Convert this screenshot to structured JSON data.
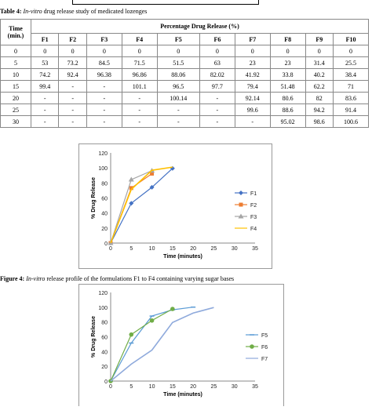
{
  "table": {
    "caption_label": "Table 4:",
    "caption_italic": "In-vitro",
    "caption_rest": " drug release study of medicated lozenges",
    "header_time_line1": "Time",
    "header_time_line2": "(min.)",
    "header_group": "Percentage Drug Release (%)",
    "columns": [
      "F1",
      "F2",
      "F3",
      "F4",
      "F5",
      "F6",
      "F7",
      "F8",
      "F9",
      "F10"
    ],
    "rows": [
      {
        "time": "0",
        "cells": [
          "0",
          "0",
          "0",
          "0",
          "0",
          "0",
          "0",
          "0",
          "0",
          "0"
        ]
      },
      {
        "time": "5",
        "cells": [
          "53",
          "73.2",
          "84.5",
          "71.5",
          "51.5",
          "63",
          "23",
          "23",
          "31.4",
          "25.5"
        ]
      },
      {
        "time": "10",
        "cells": [
          "74.2",
          "92.4",
          "96.38",
          "96.86",
          "88.06",
          "82.02",
          "41.92",
          "33.8",
          "40.2",
          "38.4"
        ]
      },
      {
        "time": "15",
        "cells": [
          "99.4",
          "-",
          "-",
          "101.1",
          "96.5",
          "97.7",
          "79.4",
          "51.48",
          "62.2",
          "71"
        ]
      },
      {
        "time": "20",
        "cells": [
          "-",
          "-",
          "-",
          "-",
          "100.14",
          "-",
          "92.14",
          "80.6",
          "82",
          "83.6"
        ]
      },
      {
        "time": "25",
        "cells": [
          "-",
          "-",
          "-",
          "-",
          "-",
          "-",
          "99.6",
          "88.6",
          "94.2",
          "91.4"
        ]
      },
      {
        "time": "30",
        "cells": [
          "-",
          "-",
          "-",
          "-",
          "-",
          "-",
          "-",
          "95.02",
          "98.6",
          "100.6"
        ]
      }
    ]
  },
  "figure4": {
    "caption_label": "Figure 4:",
    "caption_italic": "In-vitro",
    "caption_rest": " release profile of the formulations F1 to F4 containing varying sugar bases"
  },
  "chart_data": [
    {
      "type": "line",
      "xlabel": "Time (minutes)",
      "ylabel": "% Drug Release",
      "xlim": [
        0,
        35
      ],
      "ylim": [
        0,
        120
      ],
      "xticks": [
        0,
        5,
        10,
        15,
        20,
        25,
        30,
        35
      ],
      "yticks": [
        0,
        20,
        40,
        60,
        80,
        100,
        120
      ],
      "legend_position": "right",
      "series": [
        {
          "name": "F1",
          "color": "#4472c4",
          "marker": "diamond",
          "x": [
            0,
            5,
            10,
            15
          ],
          "y": [
            0,
            53,
            74.2,
            99.4
          ]
        },
        {
          "name": "F2",
          "color": "#ed7d31",
          "marker": "square",
          "x": [
            0,
            5,
            10
          ],
          "y": [
            0,
            73.2,
            92.4
          ]
        },
        {
          "name": "F3",
          "color": "#a5a5a5",
          "marker": "triangle",
          "x": [
            0,
            5,
            10
          ],
          "y": [
            0,
            84.5,
            96.38
          ]
        },
        {
          "name": "F4",
          "color": "#ffc000",
          "marker": "none",
          "x": [
            0,
            5,
            10,
            15
          ],
          "y": [
            0,
            71.5,
            96.86,
            101.1
          ]
        }
      ]
    },
    {
      "type": "line",
      "xlabel": "Time (minutes)",
      "ylabel": "% Drug Release",
      "xlim": [
        0,
        35
      ],
      "ylim": [
        0,
        120
      ],
      "xticks": [
        0,
        5,
        10,
        15,
        20,
        25,
        30,
        35
      ],
      "yticks": [
        0,
        20,
        40,
        60,
        80,
        100,
        120
      ],
      "legend_position": "right",
      "series": [
        {
          "name": "F5",
          "color": "#5b9bd5",
          "marker": "dash",
          "x": [
            0,
            5,
            10,
            15,
            20
          ],
          "y": [
            0,
            51.5,
            88.06,
            96.5,
            100.14
          ]
        },
        {
          "name": "F6",
          "color": "#70ad47",
          "marker": "circle",
          "x": [
            0,
            5,
            10,
            15
          ],
          "y": [
            0,
            63,
            82.02,
            97.7
          ]
        },
        {
          "name": "F7",
          "color": "#8faadc",
          "marker": "none",
          "x": [
            0,
            5,
            10,
            15,
            20,
            25
          ],
          "y": [
            0,
            23,
            41.92,
            79.4,
            92.14,
            99.6
          ]
        }
      ]
    }
  ]
}
